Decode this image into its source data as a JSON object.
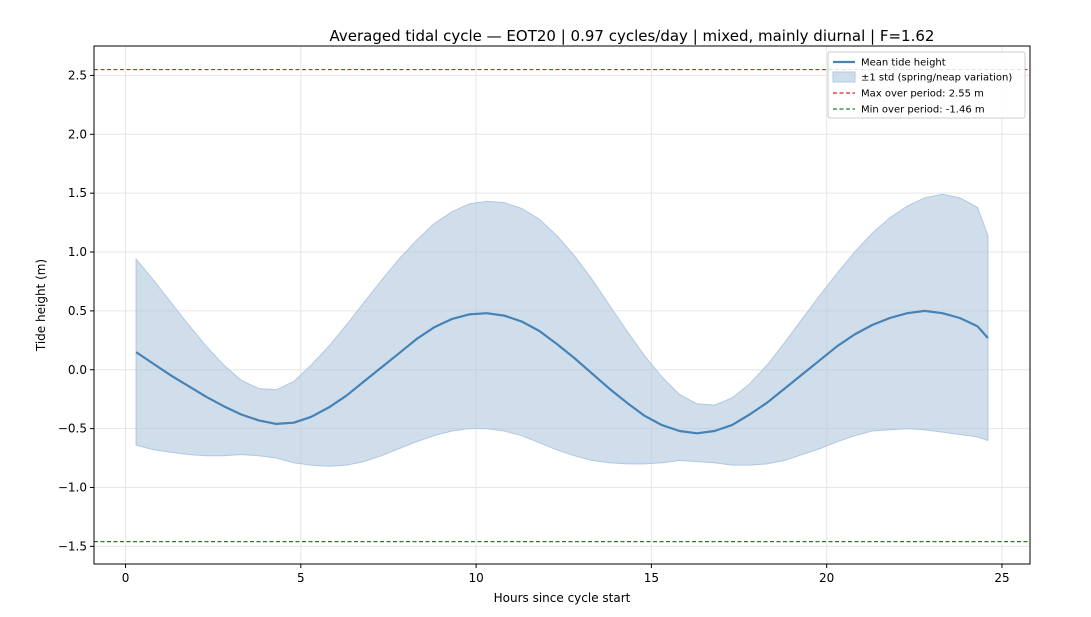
{
  "chart_data": {
    "type": "line",
    "title": "Averaged tidal cycle — EOT20  |  0.97 cycles/day  |  mixed, mainly diurnal  |  F=1.62",
    "xlabel": "Hours since cycle start",
    "ylabel": "Tide height (m)",
    "xlim": [
      -0.9,
      25.8
    ],
    "ylim": [
      -1.65,
      2.75
    ],
    "xticks": [
      0,
      5,
      10,
      15,
      20,
      25
    ],
    "yticks": [
      -1.5,
      -1.0,
      -0.5,
      0.0,
      0.5,
      1.0,
      1.5,
      2.0,
      2.5
    ],
    "grid": true,
    "legend_position": "top-right",
    "x": [
      0.3,
      0.8,
      1.3,
      1.8,
      2.3,
      2.8,
      3.3,
      3.8,
      4.3,
      4.8,
      5.3,
      5.8,
      6.3,
      6.8,
      7.3,
      7.8,
      8.3,
      8.8,
      9.3,
      9.8,
      10.3,
      10.8,
      11.3,
      11.8,
      12.3,
      12.8,
      13.3,
      13.8,
      14.3,
      14.8,
      15.3,
      15.8,
      16.3,
      16.8,
      17.3,
      17.8,
      18.3,
      18.8,
      19.3,
      19.8,
      20.3,
      20.8,
      21.3,
      21.8,
      22.3,
      22.8,
      23.3,
      23.8,
      24.3,
      24.6
    ],
    "series": [
      {
        "name": "Mean tide height",
        "color": "#4682b4",
        "values": [
          0.15,
          0.05,
          -0.05,
          -0.14,
          -0.23,
          -0.31,
          -0.38,
          -0.43,
          -0.46,
          -0.45,
          -0.4,
          -0.32,
          -0.22,
          -0.1,
          0.02,
          0.14,
          0.26,
          0.36,
          0.43,
          0.47,
          0.48,
          0.46,
          0.41,
          0.33,
          0.22,
          0.1,
          -0.03,
          -0.16,
          -0.28,
          -0.39,
          -0.47,
          -0.52,
          -0.54,
          -0.52,
          -0.47,
          -0.38,
          -0.28,
          -0.16,
          -0.04,
          0.08,
          0.2,
          0.3,
          0.38,
          0.44,
          0.48,
          0.5,
          0.48,
          0.44,
          0.37,
          0.27
        ]
      }
    ],
    "band": {
      "name": "±1 std (spring/neap variation)",
      "color": "#b0c8e0",
      "upper": [
        0.94,
        0.76,
        0.57,
        0.38,
        0.2,
        0.04,
        -0.09,
        -0.16,
        -0.17,
        -0.1,
        0.04,
        0.2,
        0.38,
        0.57,
        0.76,
        0.94,
        1.1,
        1.24,
        1.34,
        1.41,
        1.43,
        1.42,
        1.37,
        1.28,
        1.14,
        0.97,
        0.77,
        0.55,
        0.33,
        0.12,
        -0.06,
        -0.21,
        -0.29,
        -0.3,
        -0.24,
        -0.12,
        0.04,
        0.23,
        0.43,
        0.63,
        0.82,
        1.0,
        1.16,
        1.29,
        1.39,
        1.46,
        1.49,
        1.46,
        1.38,
        1.14
      ],
      "lower": [
        -0.64,
        -0.68,
        -0.7,
        -0.72,
        -0.73,
        -0.73,
        -0.72,
        -0.73,
        -0.75,
        -0.79,
        -0.81,
        -0.82,
        -0.81,
        -0.78,
        -0.73,
        -0.67,
        -0.61,
        -0.56,
        -0.52,
        -0.5,
        -0.5,
        -0.52,
        -0.56,
        -0.62,
        -0.68,
        -0.73,
        -0.77,
        -0.79,
        -0.8,
        -0.8,
        -0.79,
        -0.77,
        -0.78,
        -0.79,
        -0.81,
        -0.81,
        -0.8,
        -0.77,
        -0.72,
        -0.67,
        -0.61,
        -0.56,
        -0.52,
        -0.51,
        -0.5,
        -0.51,
        -0.53,
        -0.55,
        -0.57,
        -0.6
      ]
    },
    "reference_lines": [
      {
        "name": "Max over period: 2.55 m",
        "value": 2.55,
        "color": "#d62728"
      },
      {
        "name": "Min over period: -1.46 m",
        "value": -1.46,
        "color": "#2c7a2c"
      }
    ]
  }
}
